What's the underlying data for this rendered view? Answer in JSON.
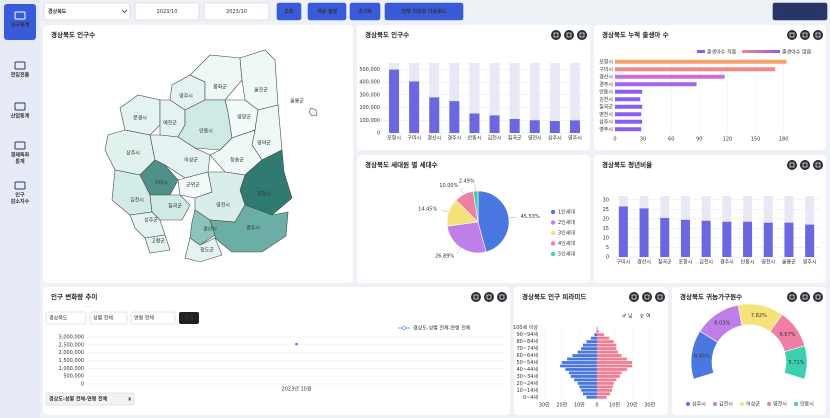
{
  "sidebar": {
    "items": [
      {
        "lines": [
          "인구통계"
        ]
      },
      {
        "lines": [
          "전입전출"
        ]
      },
      {
        "lines": [
          "산업통계"
        ]
      },
      {
        "lines": [
          "경제특화",
          "통계"
        ]
      },
      {
        "lines": [
          "인구",
          "감소지수"
        ]
      }
    ]
  },
  "toolbar": {
    "region": "경상북도",
    "start": "2023/10",
    "end": "2023/10",
    "buttons": [
      "조회",
      "색상 설정",
      "초기화",
      "전체 리포트 다운로드"
    ],
    "service": "서비스 안내"
  },
  "map": {
    "title": "경상북도 인구수",
    "regions": [
      {
        "name": "영주시",
        "color": "#e4f3f1"
      },
      {
        "name": "봉화군",
        "color": "#eef8f7"
      },
      {
        "name": "울진군",
        "color": "#eef8f7"
      },
      {
        "name": "문경시",
        "color": "#e4f3f1"
      },
      {
        "name": "예천군",
        "color": "#e4f3f1"
      },
      {
        "name": "안동시",
        "color": "#cfe9e5"
      },
      {
        "name": "영양군",
        "color": "#f3fafa"
      },
      {
        "name": "영덕군",
        "color": "#eef8f7"
      },
      {
        "name": "상주시",
        "color": "#e0f1ee"
      },
      {
        "name": "의성군",
        "color": "#e4f3f1"
      },
      {
        "name": "청송군",
        "color": "#eef8f7"
      },
      {
        "name": "구미시",
        "color": "#4f9189"
      },
      {
        "name": "군위군",
        "color": "#f3fafa"
      },
      {
        "name": "포항시",
        "color": "#2f7b72"
      },
      {
        "name": "김천시",
        "color": "#d3ebe7"
      },
      {
        "name": "칠곡군",
        "color": "#cfe9e5"
      },
      {
        "name": "영천시",
        "color": "#d9eeeb"
      },
      {
        "name": "성주군",
        "color": "#e4f3f1"
      },
      {
        "name": "고령군",
        "color": "#e4f3f1"
      },
      {
        "name": "경산시",
        "color": "#8cc4bc"
      },
      {
        "name": "청도군",
        "color": "#e4f3f1"
      },
      {
        "name": "경주시",
        "color": "#6aaea5"
      },
      {
        "name": "울릉군",
        "color": "#eef8f7"
      }
    ]
  },
  "trend_controls": {
    "selects": [
      "경상북도",
      "성별 전체",
      "연령 전체"
    ],
    "button": "조회",
    "chip": "경상도-성별 전체-연령 전체",
    "chip_close": "x"
  },
  "chart_data": [
    {
      "type": "bar",
      "title": "경상북도 인구수",
      "categories": [
        "포항시",
        "구미시",
        "경산시",
        "경주시",
        "안동시",
        "김천시",
        "칠곡군",
        "영천시",
        "상주시",
        "영주시"
      ],
      "values": [
        498000,
        405000,
        280000,
        250000,
        153000,
        138000,
        110000,
        100000,
        94000,
        99000
      ],
      "color": "#6a67e0",
      "ylim": [
        0,
        550000
      ],
      "yticks": [
        0,
        {
          "value": 100000,
          "label": "100,000"
        },
        {
          "value": 200000,
          "label": "200,000"
        },
        {
          "value": 300000,
          "label": "300,000"
        },
        {
          "value": 400000,
          "label": "400,000"
        },
        {
          "value": 500000,
          "label": "500,000"
        }
      ],
      "grid": true
    },
    {
      "type": "hbar",
      "title": "경상북도 누적 출생아 수",
      "categories": [
        "포항시",
        "구미시",
        "경산시",
        "경주시",
        "안동시",
        "김천시",
        "칠곡군",
        "영천시",
        "상주시",
        "영주시"
      ],
      "values": [
        183,
        171,
        117,
        87,
        29,
        27,
        29,
        28,
        29,
        28
      ],
      "colors": [
        "#f6a06b",
        "#f08a86",
        "#c86ee0",
        "#a465ea",
        "#8a5cf0",
        "#8a5cf0",
        "#8a5cf0",
        "#8a5cf0",
        "#8a5cf0",
        "#8a5cf0"
      ],
      "xlim": [
        0,
        190
      ],
      "xticks": [
        0,
        30,
        60,
        90,
        120,
        150,
        180
      ],
      "legend": [
        "출생아수 작음",
        "출생아수 많음"
      ]
    },
    {
      "type": "pie",
      "title": "경상북도 세대원 별 세대수",
      "categories": [
        "1인세대",
        "2인세대",
        "3인세대",
        "4인세대",
        "5인세대"
      ],
      "values": [
        45.53,
        26.89,
        14.45,
        10,
        2.49
      ],
      "value_labels": [
        "45.53%",
        "26.89%",
        "14.45%",
        "10.00%",
        "2.49%"
      ],
      "colors": [
        "#4a78e0",
        "#c07fe8",
        "#f5e27a",
        "#f07fa6",
        "#3ccfb0"
      ]
    },
    {
      "type": "bar",
      "title": "경상북도 청년비율",
      "categories": [
        "구미시",
        "경산시",
        "칠곡군",
        "포항시",
        "김천시",
        "경주시",
        "안동시",
        "영천시",
        "울릉군",
        "영주시"
      ],
      "values": [
        26.5,
        25.5,
        20.5,
        19.5,
        19,
        18.5,
        18.5,
        18,
        18,
        17
      ],
      "color": "#6a67e0",
      "ylim": [
        0,
        32
      ],
      "yticks": [
        0,
        5,
        10,
        15,
        20,
        25,
        30
      ],
      "grid": true
    },
    {
      "type": "line",
      "title": "인구 변화량 추이",
      "categories": [
        "2023년 10월"
      ],
      "series": [
        {
          "name": "경상도-성별 전체-연령 전체",
          "color": "#4a78e0",
          "values": [
            2550000
          ]
        }
      ],
      "ylim": [
        0,
        3000000
      ],
      "yticks": [
        0,
        {
          "value": 500000,
          "label": "500,000"
        },
        {
          "value": 1000000,
          "label": "1,000,000"
        },
        {
          "value": 1500000,
          "label": "1,500,000"
        },
        {
          "value": 2000000,
          "label": "2,000,000"
        },
        {
          "value": 2500000,
          "label": "2,500,000"
        },
        {
          "value": 3000000,
          "label": "3,000,000"
        }
      ]
    },
    {
      "type": "pyramid",
      "title": "경상북도 인구 피라미드",
      "categories": [
        "100세 이상",
        null,
        "90~94세",
        null,
        "80~84세",
        null,
        "70~74세",
        null,
        "60~64세",
        null,
        "50~54세",
        null,
        "40~44세",
        null,
        "30~34세",
        null,
        "20~24세",
        null,
        "10~14세",
        null,
        "0~4세"
      ],
      "series": [
        {
          "name": "남",
          "symbol": "♂",
          "color": "#4a78e0",
          "values": [
            0.1,
            0.3,
            1.5,
            3.5,
            6,
            8,
            9,
            11,
            14,
            17,
            20,
            21,
            18,
            16,
            15,
            13,
            11,
            10,
            9,
            8,
            6
          ]
        },
        {
          "name": "여",
          "symbol": "♀",
          "color": "#f07f95",
          "values": [
            0.4,
            1,
            4,
            7,
            9.5,
            11,
            11,
            12,
            14,
            17,
            20,
            20,
            17,
            14,
            13,
            11,
            9.5,
            9,
            8.5,
            7.5,
            5.5
          ]
        }
      ],
      "xlim": [
        -33,
        33
      ],
      "xticks": [
        {
          "value": -30,
          "label": "30만"
        },
        {
          "value": -20,
          "label": "20만"
        },
        {
          "value": -10,
          "label": "10만"
        },
        0,
        {
          "value": 10,
          "label": "10만"
        },
        {
          "value": 20,
          "label": "20만"
        },
        {
          "value": 30,
          "label": "30만"
        }
      ]
    },
    {
      "type": "halfdonut",
      "title": "경상북도 귀농가구원수",
      "categories": [
        "상주시",
        "김천시",
        "의성군",
        "영천시",
        "안동시"
      ],
      "values": [
        8.45,
        8.03,
        7.82,
        6.67,
        5.71
      ],
      "value_labels": [
        "8.45%",
        "8.03%",
        "7.82%",
        "6.67%",
        "5.71%"
      ],
      "colors": [
        "#4a78e0",
        "#c07fe8",
        "#f5e27a",
        "#f07fa6",
        "#3ccfb0"
      ]
    }
  ]
}
